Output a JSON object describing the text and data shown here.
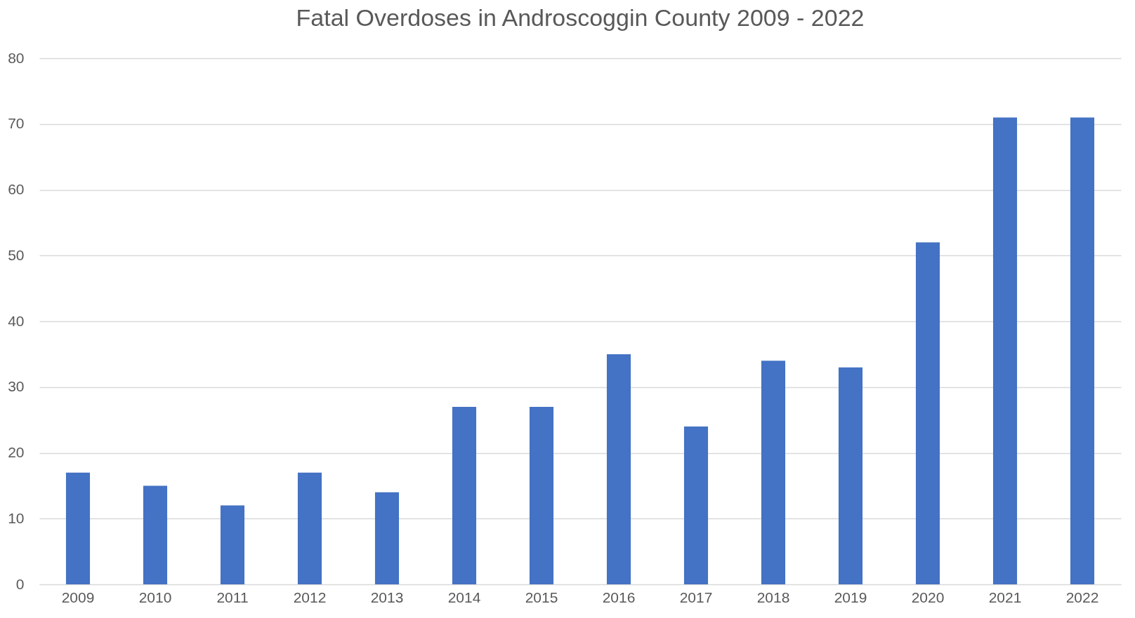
{
  "chart_data": {
    "type": "bar",
    "title": "Fatal Overdoses in Androscoggin County 2009 - 2022",
    "categories": [
      "2009",
      "2010",
      "2011",
      "2012",
      "2013",
      "2014",
      "2015",
      "2016",
      "2017",
      "2018",
      "2019",
      "2020",
      "2021",
      "2022"
    ],
    "values": [
      17,
      15,
      12,
      17,
      14,
      27,
      27,
      35,
      24,
      34,
      33,
      52,
      71,
      71
    ],
    "color": "#4472c4",
    "ylim": [
      0,
      80
    ],
    "yticks": [
      0,
      10,
      20,
      30,
      40,
      50,
      60,
      70,
      80
    ],
    "grid": "y"
  }
}
